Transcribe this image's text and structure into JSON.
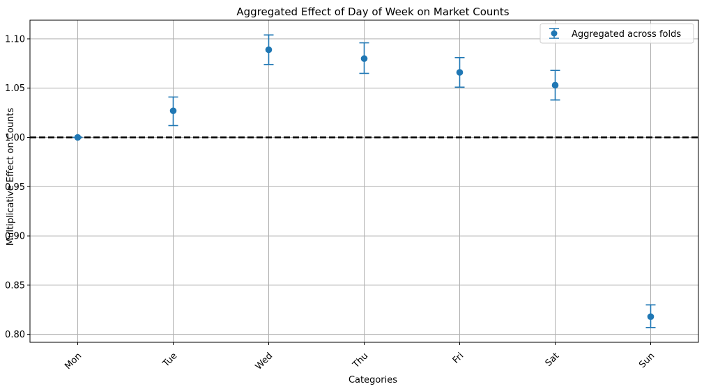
{
  "chart_data": {
    "type": "errorbar",
    "title": "Aggregated Effect of Day of Week on Market Counts",
    "xlabel": "Categories",
    "ylabel": "Multiplicative Effect on Counts",
    "categories": [
      "Mon",
      "Tue",
      "Wed",
      "Thu",
      "Fri",
      "Sat",
      "Sun"
    ],
    "series": [
      {
        "name": "Aggregated across folds",
        "values": [
          1.0,
          1.027,
          1.089,
          1.08,
          1.066,
          1.053,
          0.818
        ],
        "lower": [
          1.0,
          1.012,
          1.074,
          1.065,
          1.051,
          1.038,
          0.807
        ],
        "upper": [
          1.0,
          1.041,
          1.104,
          1.096,
          1.081,
          1.068,
          0.83
        ],
        "color": "#1f77b4"
      }
    ],
    "reference_line": {
      "y": 1.0,
      "style": "dashed",
      "color": "#000000"
    },
    "ylim": [
      0.792,
      1.119
    ],
    "yticks": [
      0.8,
      0.85,
      0.9,
      0.95,
      1.0,
      1.05,
      1.1
    ],
    "ytick_labels": [
      "0.80",
      "0.85",
      "0.90",
      "0.95",
      "1.00",
      "1.05",
      "1.10"
    ],
    "xtick_rotation": 45,
    "grid": true,
    "legend_location": "top-right"
  }
}
